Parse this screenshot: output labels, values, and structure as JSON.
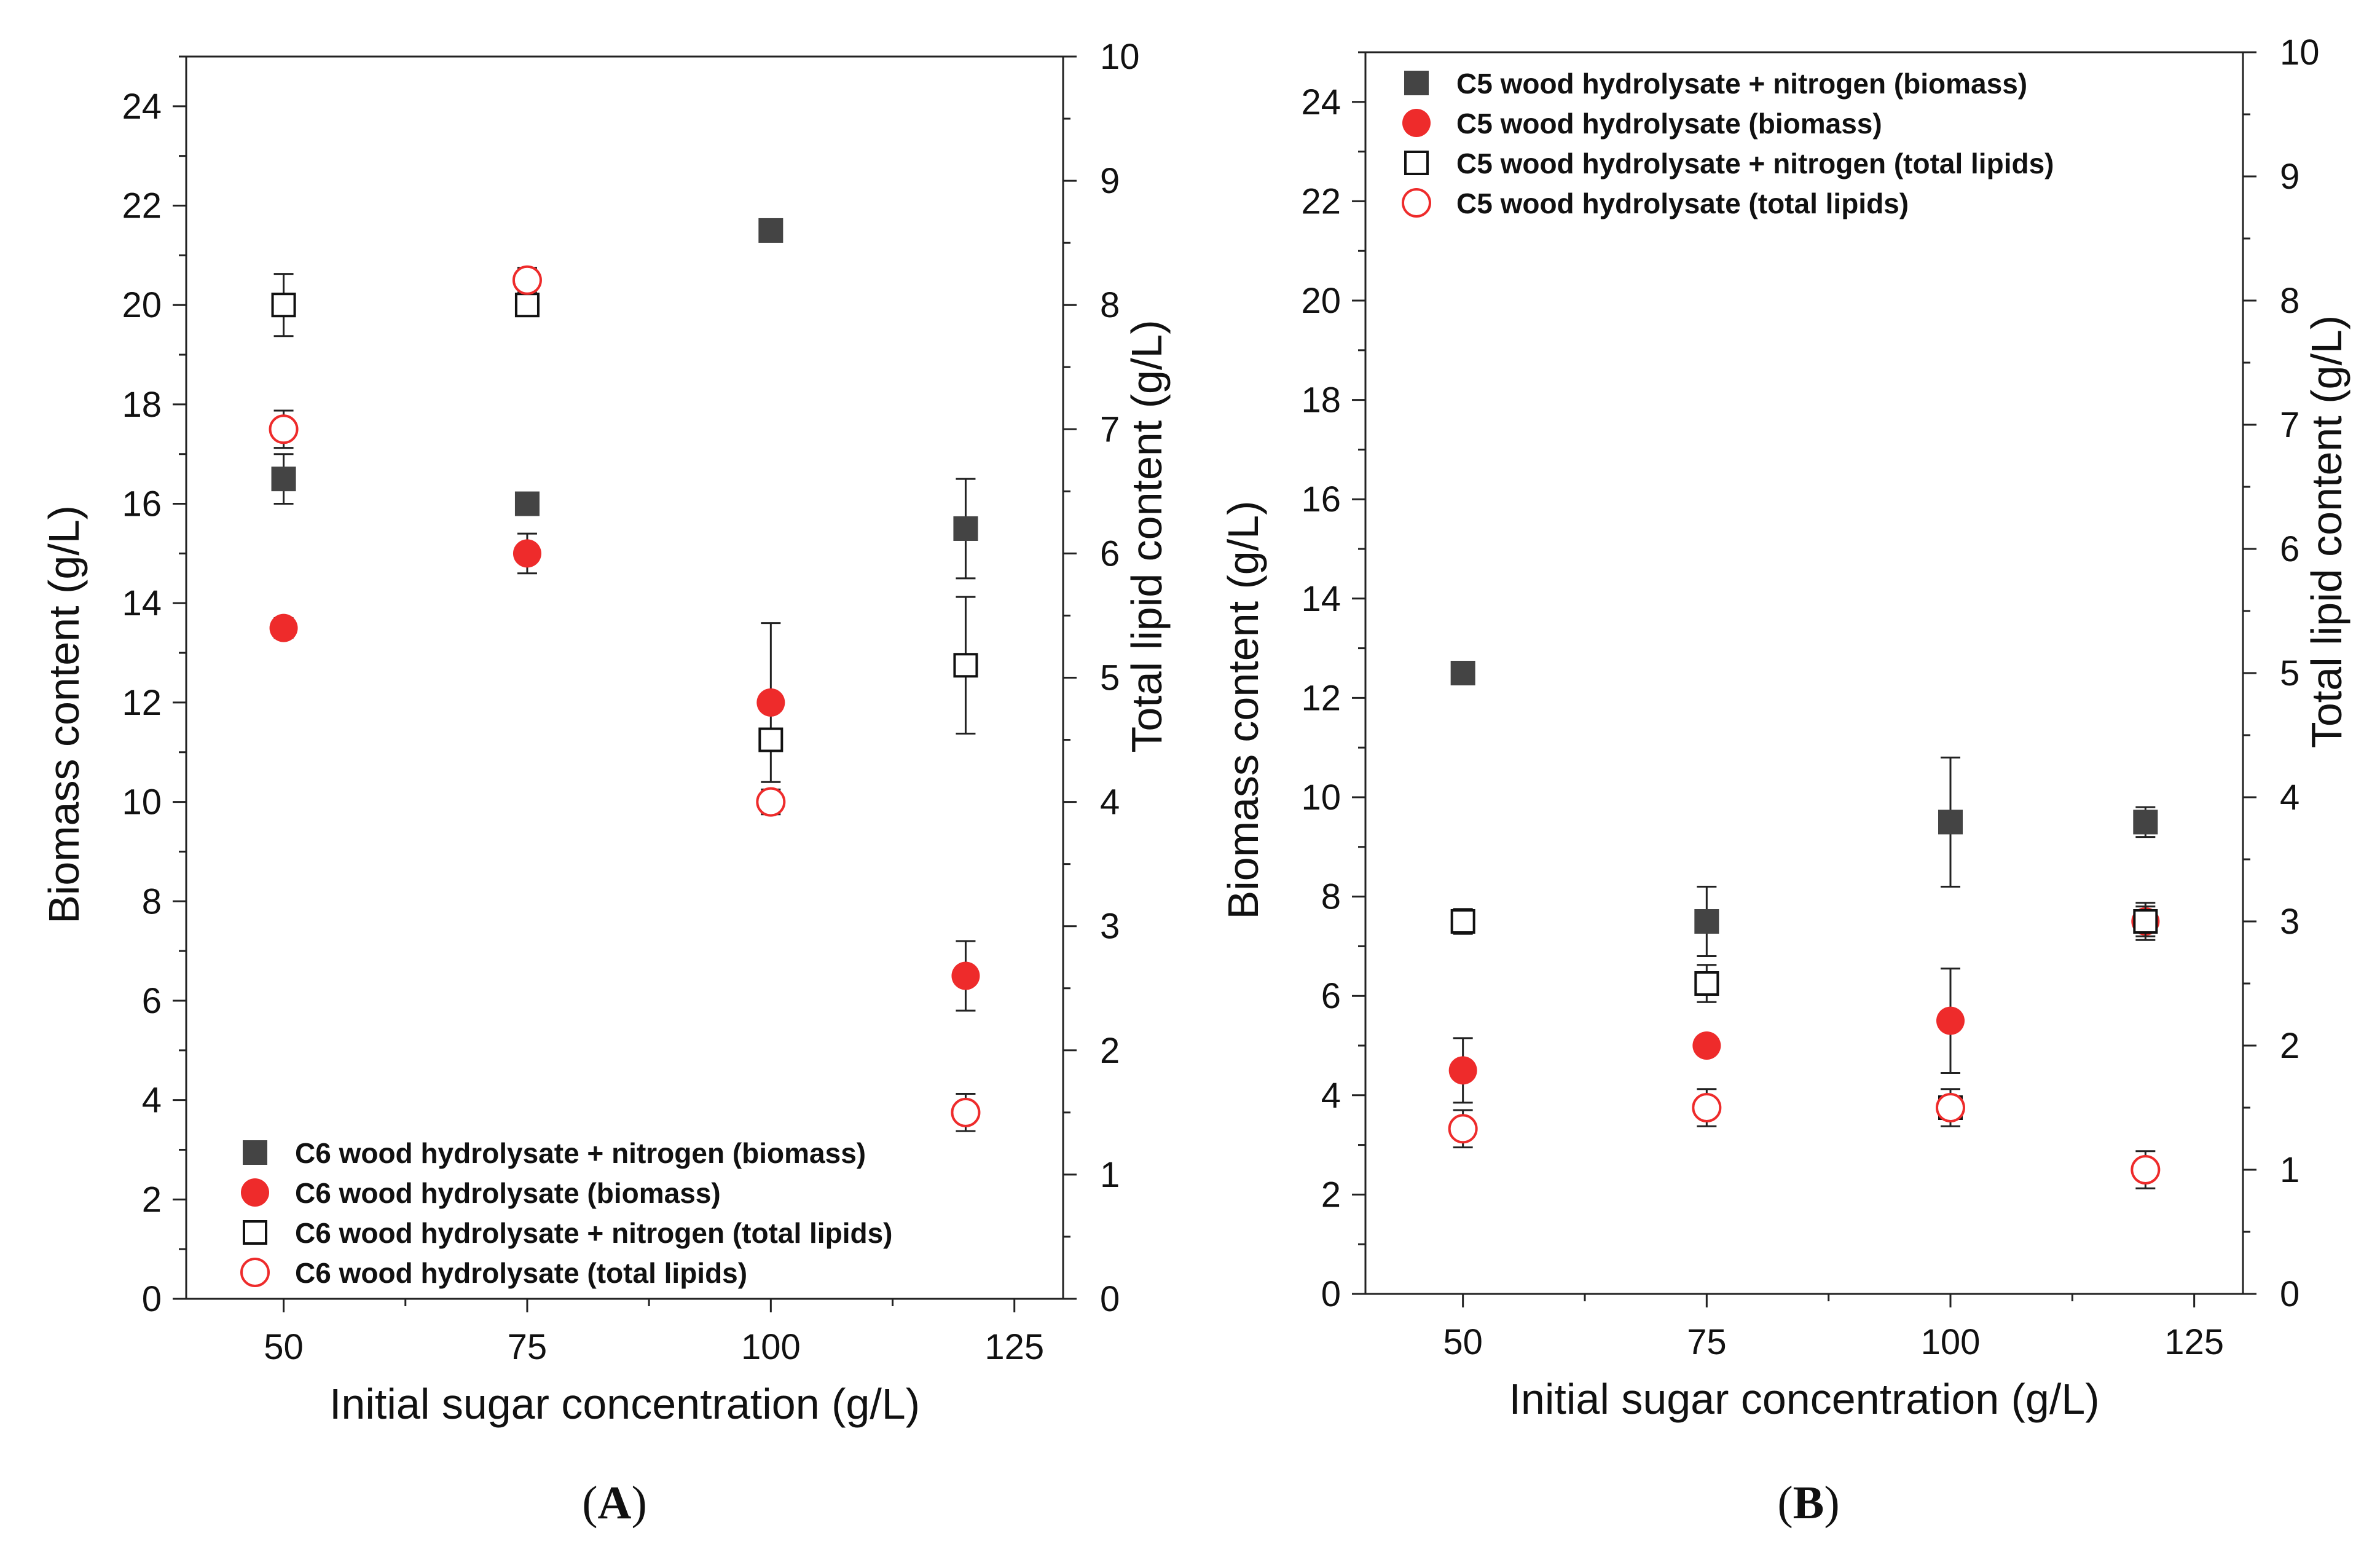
{
  "chart_data": [
    {
      "type": "scatter",
      "panel_label": "A",
      "xlabel": "Initial sugar concentration (g/L)",
      "ylabel": "Biomass content (g/L)",
      "y2label": "Total lipid content (g/L)",
      "xlim": [
        40,
        130
      ],
      "ylim": [
        0,
        25
      ],
      "y2lim": [
        0,
        10
      ],
      "xticks": [
        50,
        75,
        100,
        125
      ],
      "yticks": [
        0,
        2,
        4,
        6,
        8,
        10,
        12,
        14,
        16,
        18,
        20,
        22,
        24
      ],
      "y2ticks": [
        0,
        1,
        2,
        3,
        4,
        5,
        6,
        7,
        8,
        9,
        10
      ],
      "legend_position": "bottom-left",
      "series": [
        {
          "name": "C6 wood hydrolysate + nitrogen (biomass)",
          "marker": "square-filled",
          "axis": "left",
          "x": [
            50,
            75,
            100,
            120
          ],
          "y": [
            16.5,
            16.0,
            21.5,
            15.5
          ],
          "err": [
            0.5,
            0.0,
            0.0,
            1.0
          ]
        },
        {
          "name": "C6 wood hydrolysate (biomass)",
          "marker": "circle-filled",
          "axis": "left",
          "x": [
            50,
            75,
            100,
            120
          ],
          "y": [
            13.5,
            15.0,
            12.0,
            6.5
          ],
          "err": [
            0.2,
            0.4,
            1.6,
            0.7
          ]
        },
        {
          "name": "C6 wood hydrolysate + nitrogen (total lipids)",
          "marker": "square-open",
          "axis": "right",
          "x": [
            50,
            75,
            100,
            120
          ],
          "y": [
            8.0,
            8.0,
            4.5,
            5.1
          ],
          "err": [
            0.25,
            0.05,
            0.0,
            0.55
          ]
        },
        {
          "name": "C6 wood hydrolysate (total lipids)",
          "marker": "circle-open",
          "axis": "right",
          "x": [
            50,
            75,
            100,
            120
          ],
          "y": [
            7.0,
            8.2,
            4.0,
            1.5
          ],
          "err": [
            0.15,
            0.1,
            0.1,
            0.15
          ]
        }
      ]
    },
    {
      "type": "scatter",
      "panel_label": "B",
      "xlabel": "Initial sugar concentration (g/L)",
      "ylabel": "Biomass content (g/L)",
      "y2label": "Total lipid content (g/L)",
      "xlim": [
        40,
        130
      ],
      "ylim": [
        0,
        25
      ],
      "y2lim": [
        0,
        10
      ],
      "xticks": [
        50,
        75,
        100,
        125
      ],
      "yticks": [
        0,
        2,
        4,
        6,
        8,
        10,
        12,
        14,
        16,
        18,
        20,
        22,
        24
      ],
      "y2ticks": [
        0,
        1,
        2,
        3,
        4,
        5,
        6,
        7,
        8,
        9,
        10
      ],
      "legend_position": "top-left",
      "series": [
        {
          "name": "C5 wood hydrolysate + nitrogen (biomass)",
          "marker": "square-filled",
          "axis": "left",
          "x": [
            50,
            75,
            100,
            120
          ],
          "y": [
            12.5,
            7.5,
            9.5,
            9.5
          ],
          "err": [
            0.0,
            0.7,
            1.3,
            0.3
          ]
        },
        {
          "name": "C5 wood hydrolysate (biomass)",
          "marker": "circle-filled",
          "axis": "left",
          "x": [
            50,
            75,
            100,
            120
          ],
          "y": [
            4.5,
            5.0,
            5.5,
            7.5
          ],
          "err": [
            0.65,
            0.0,
            1.05,
            0.3
          ]
        },
        {
          "name": "C5 wood hydrolysate + nitrogen (total lipids)",
          "marker": "square-open",
          "axis": "right",
          "x": [
            50,
            75,
            100,
            120
          ],
          "y": [
            3.0,
            2.5,
            1.5,
            3.0
          ],
          "err": [
            0.1,
            0.15,
            0.05,
            0.15
          ]
        },
        {
          "name": "C5 wood hydrolysate (total lipids)",
          "marker": "circle-open",
          "axis": "right",
          "x": [
            50,
            75,
            100,
            120
          ],
          "y": [
            1.33,
            1.5,
            1.5,
            1.0
          ],
          "err": [
            0.15,
            0.15,
            0.15,
            0.15
          ]
        }
      ]
    }
  ]
}
